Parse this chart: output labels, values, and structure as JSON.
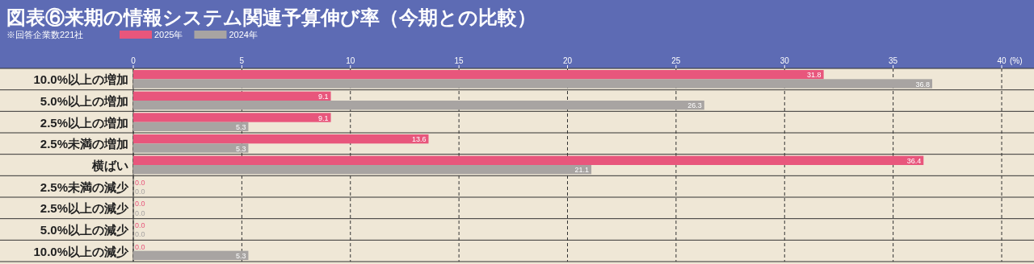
{
  "chart_data": {
    "type": "bar",
    "orientation": "horizontal",
    "title": "図表⑥来期の情報システム関連予算伸び率（今期との比較）",
    "annotations": [
      "※回答企業数221社"
    ],
    "categories": [
      "10.0%以上の増加",
      "5.0%以上の増加",
      "2.5%以上の増加",
      "2.5%未満の増加",
      "横ばい",
      "2.5%未満の減少",
      "2.5%以上の減少",
      "5.0%以上の減少",
      "10.0%以上の減少"
    ],
    "series": [
      {
        "name": "2025年",
        "color": "#e8567c",
        "values": [
          31.8,
          9.1,
          9.1,
          13.6,
          36.4,
          0,
          0,
          0,
          0
        ],
        "value_labels": [
          "31.8",
          "9.1",
          "9.1",
          "13.6",
          "36.4",
          "0.0",
          "0.0",
          "0.0",
          "0.0"
        ]
      },
      {
        "name": "2024年",
        "color": "#a8a4a2",
        "values": [
          36.8,
          26.3,
          5.3,
          5.3,
          21.1,
          0,
          0,
          0,
          5.3
        ],
        "value_labels": [
          "36.8",
          "26.3",
          "5.3",
          "5.3",
          "21.1",
          "0.0",
          "0.0",
          "0.0",
          "5.3"
        ]
      }
    ],
    "xlabel": "(%)",
    "xlim": [
      0,
      40
    ],
    "xticks": [
      0,
      5,
      10,
      15,
      20,
      25,
      30,
      35,
      40
    ],
    "grid": "x",
    "legend": "top left"
  }
}
